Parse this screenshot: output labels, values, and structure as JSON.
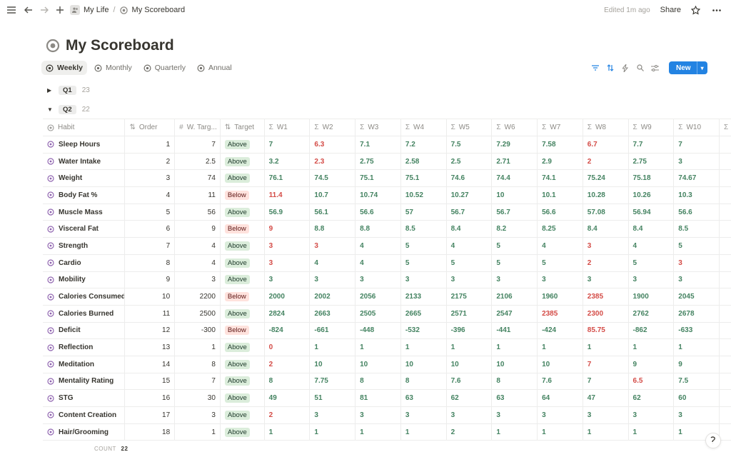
{
  "topbar": {
    "breadcrumb": [
      "My Life",
      "My Scoreboard"
    ],
    "edited": "Edited 1m ago",
    "share": "Share"
  },
  "page": {
    "title": "My Scoreboard"
  },
  "views": [
    "Weekly",
    "Monthly",
    "Quarterly",
    "Annual"
  ],
  "new_label": "New",
  "groups": [
    {
      "label": "Q1",
      "count": "23",
      "expanded": false
    },
    {
      "label": "Q2",
      "count": "22",
      "expanded": true
    }
  ],
  "columns": {
    "habit": "Habit",
    "order": "Order",
    "w_target": "W. Targ...",
    "target": "Target",
    "weeks": [
      "W1",
      "W2",
      "W3",
      "W4",
      "W5",
      "W6",
      "W7",
      "W8",
      "W9",
      "W10"
    ]
  },
  "rows": [
    {
      "habit": "Sleep Hours",
      "order": "1",
      "w_target": "7",
      "target": "Above",
      "w": [
        "7",
        "6.3",
        "7.1",
        "7.2",
        "7.5",
        "7.29",
        "7.58",
        "6.7",
        "7.7",
        "7"
      ],
      "status": [
        "g",
        "r",
        "g",
        "g",
        "g",
        "g",
        "g",
        "r",
        "g",
        "g"
      ]
    },
    {
      "habit": "Water Intake",
      "order": "2",
      "w_target": "2.5",
      "target": "Above",
      "w": [
        "3.2",
        "2.3",
        "2.75",
        "2.58",
        "2.5",
        "2.71",
        "2.9",
        "2",
        "2.75",
        "3"
      ],
      "status": [
        "g",
        "r",
        "g",
        "g",
        "g",
        "g",
        "g",
        "r",
        "g",
        "g"
      ]
    },
    {
      "habit": "Weight",
      "order": "3",
      "w_target": "74",
      "target": "Above",
      "w": [
        "76.1",
        "74.5",
        "75.1",
        "75.1",
        "74.6",
        "74.4",
        "74.1",
        "75.24",
        "75.18",
        "74.67"
      ],
      "status": [
        "g",
        "g",
        "g",
        "g",
        "g",
        "g",
        "g",
        "g",
        "g",
        "g"
      ]
    },
    {
      "habit": "Body Fat %",
      "order": "4",
      "w_target": "11",
      "target": "Below",
      "w": [
        "11.4",
        "10.7",
        "10.74",
        "10.52",
        "10.27",
        "10",
        "10.1",
        "10.28",
        "10.26",
        "10.3"
      ],
      "status": [
        "r",
        "g",
        "g",
        "g",
        "g",
        "g",
        "g",
        "g",
        "g",
        "g"
      ]
    },
    {
      "habit": "Muscle Mass",
      "order": "5",
      "w_target": "56",
      "target": "Above",
      "w": [
        "56.9",
        "56.1",
        "56.6",
        "57",
        "56.7",
        "56.7",
        "56.6",
        "57.08",
        "56.94",
        "56.6"
      ],
      "status": [
        "g",
        "g",
        "g",
        "g",
        "g",
        "g",
        "g",
        "g",
        "g",
        "g"
      ]
    },
    {
      "habit": "Visceral Fat",
      "order": "6",
      "w_target": "9",
      "target": "Below",
      "w": [
        "9",
        "8.8",
        "8.8",
        "8.5",
        "8.4",
        "8.2",
        "8.25",
        "8.4",
        "8.4",
        "8.5"
      ],
      "status": [
        "r",
        "g",
        "g",
        "g",
        "g",
        "g",
        "g",
        "g",
        "g",
        "g"
      ]
    },
    {
      "habit": "Strength",
      "order": "7",
      "w_target": "4",
      "target": "Above",
      "w": [
        "3",
        "3",
        "4",
        "5",
        "4",
        "5",
        "4",
        "3",
        "4",
        "5"
      ],
      "status": [
        "r",
        "r",
        "g",
        "g",
        "g",
        "g",
        "g",
        "r",
        "g",
        "g"
      ]
    },
    {
      "habit": "Cardio",
      "order": "8",
      "w_target": "4",
      "target": "Above",
      "w": [
        "3",
        "4",
        "4",
        "5",
        "5",
        "5",
        "5",
        "2",
        "5",
        "3"
      ],
      "status": [
        "r",
        "g",
        "g",
        "g",
        "g",
        "g",
        "g",
        "r",
        "g",
        "r"
      ]
    },
    {
      "habit": "Mobility",
      "order": "9",
      "w_target": "3",
      "target": "Above",
      "w": [
        "3",
        "3",
        "3",
        "3",
        "3",
        "3",
        "3",
        "3",
        "3",
        "3"
      ],
      "status": [
        "g",
        "g",
        "g",
        "g",
        "g",
        "g",
        "g",
        "g",
        "g",
        "g"
      ]
    },
    {
      "habit": "Calories Consumed",
      "order": "10",
      "w_target": "2200",
      "target": "Below",
      "w": [
        "2000",
        "2002",
        "2056",
        "2133",
        "2175",
        "2106",
        "1960",
        "2385",
        "1900",
        "2045"
      ],
      "status": [
        "g",
        "g",
        "g",
        "g",
        "g",
        "g",
        "g",
        "r",
        "g",
        "g"
      ]
    },
    {
      "habit": "Calories Burned",
      "order": "11",
      "w_target": "2500",
      "target": "Above",
      "w": [
        "2824",
        "2663",
        "2505",
        "2665",
        "2571",
        "2547",
        "2385",
        "2300",
        "2762",
        "2678"
      ],
      "status": [
        "g",
        "g",
        "g",
        "g",
        "g",
        "g",
        "r",
        "r",
        "g",
        "g"
      ]
    },
    {
      "habit": "Deficit",
      "order": "12",
      "w_target": "-300",
      "target": "Below",
      "w": [
        "-824",
        "-661",
        "-448",
        "-532",
        "-396",
        "-441",
        "-424",
        "85.75",
        "-862",
        "-633"
      ],
      "status": [
        "g",
        "g",
        "g",
        "g",
        "g",
        "g",
        "g",
        "r",
        "g",
        "g"
      ]
    },
    {
      "habit": "Reflection",
      "order": "13",
      "w_target": "1",
      "target": "Above",
      "w": [
        "0",
        "1",
        "1",
        "1",
        "1",
        "1",
        "1",
        "1",
        "1",
        "1"
      ],
      "status": [
        "r",
        "g",
        "g",
        "g",
        "g",
        "g",
        "g",
        "g",
        "g",
        "g"
      ]
    },
    {
      "habit": "Meditation",
      "order": "14",
      "w_target": "8",
      "target": "Above",
      "w": [
        "2",
        "10",
        "10",
        "10",
        "10",
        "10",
        "10",
        "7",
        "9",
        "9"
      ],
      "status": [
        "r",
        "g",
        "g",
        "g",
        "g",
        "g",
        "g",
        "r",
        "g",
        "g"
      ]
    },
    {
      "habit": "Mentality Rating",
      "order": "15",
      "w_target": "7",
      "target": "Above",
      "w": [
        "8",
        "7.75",
        "8",
        "8",
        "7.6",
        "8",
        "7.6",
        "7",
        "6.5",
        "7.5"
      ],
      "status": [
        "g",
        "g",
        "g",
        "g",
        "g",
        "g",
        "g",
        "g",
        "r",
        "g"
      ]
    },
    {
      "habit": "STG",
      "order": "16",
      "w_target": "30",
      "target": "Above",
      "w": [
        "49",
        "51",
        "81",
        "63",
        "62",
        "63",
        "64",
        "47",
        "62",
        "60"
      ],
      "status": [
        "g",
        "g",
        "g",
        "g",
        "g",
        "g",
        "g",
        "g",
        "g",
        "g"
      ]
    },
    {
      "habit": "Content Creation",
      "order": "17",
      "w_target": "3",
      "target": "Above",
      "w": [
        "2",
        "3",
        "3",
        "3",
        "3",
        "3",
        "3",
        "3",
        "3",
        "3"
      ],
      "status": [
        "r",
        "g",
        "g",
        "g",
        "g",
        "g",
        "g",
        "g",
        "g",
        "g"
      ]
    },
    {
      "habit": "Hair/Grooming",
      "order": "18",
      "w_target": "1",
      "target": "Above",
      "w": [
        "1",
        "1",
        "1",
        "1",
        "2",
        "1",
        "1",
        "1",
        "1",
        "1"
      ],
      "status": [
        "g",
        "g",
        "g",
        "g",
        "g",
        "g",
        "g",
        "g",
        "g",
        "g"
      ]
    }
  ],
  "footer": {
    "count_label": "COUNT",
    "count_value": "22"
  },
  "colors": {
    "green": "#448361",
    "red": "#d44c47",
    "accent": "#2383e2"
  }
}
